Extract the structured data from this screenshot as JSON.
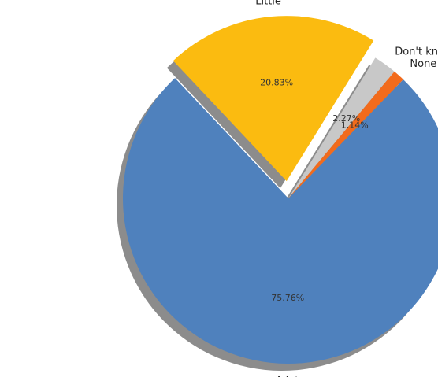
{
  "chart_data": {
    "type": "pie",
    "title": "",
    "series": [
      {
        "categories": [
          "A lot",
          "Little",
          "Don't know / No response",
          "None"
        ],
        "values": [
          75.76,
          20.83,
          2.27,
          1.14
        ],
        "value_labels": [
          "75.76%",
          "20.83%",
          "2.27%",
          "1.14%"
        ],
        "colors": [
          "#4f81bd",
          "#fbbb10",
          "#c8c8c8",
          "#f26b1c"
        ]
      }
    ],
    "exploded": [
      "Little"
    ],
    "shadow": true,
    "legend": "none"
  }
}
